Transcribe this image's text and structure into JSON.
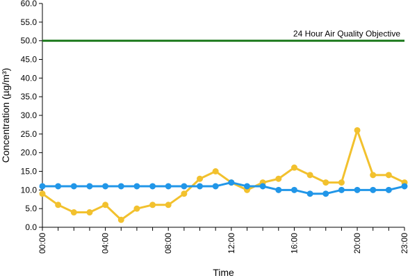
{
  "chart_data": {
    "type": "line",
    "title": "",
    "xlabel": "Time",
    "ylabel": "Concentration (µg/m³)",
    "ylim": [
      0,
      60
    ],
    "yticks": [
      "0.0",
      "5.0",
      "10.0",
      "15.0",
      "20.0",
      "25.0",
      "30.0",
      "35.0",
      "40.0",
      "45.0",
      "50.0",
      "55.0",
      "60.0"
    ],
    "x": [
      "00:00",
      "01:00",
      "02:00",
      "03:00",
      "04:00",
      "05:00",
      "06:00",
      "07:00",
      "08:00",
      "09:00",
      "10:00",
      "11:00",
      "12:00",
      "13:00",
      "14:00",
      "15:00",
      "16:00",
      "17:00",
      "18:00",
      "19:00",
      "20:00",
      "21:00",
      "22:00",
      "23:00"
    ],
    "xtick_labels": [
      "00:00",
      "04:00",
      "08:00",
      "12:00",
      "16:00",
      "20:00",
      "23:00"
    ],
    "grid": false,
    "legend": "none",
    "series": [
      {
        "color": "#f2c12e",
        "values": [
          9,
          6,
          4,
          4,
          6,
          2,
          5,
          6,
          6,
          9,
          13,
          15,
          12,
          10,
          12,
          13,
          16,
          14,
          12,
          12,
          26,
          14,
          14,
          12
        ]
      },
      {
        "color": "#2196e8",
        "values": [
          11,
          11,
          11,
          11,
          11,
          11,
          11,
          11,
          11,
          11,
          11,
          11,
          12,
          11,
          11,
          10,
          10,
          9,
          9,
          10,
          10,
          10,
          10,
          11
        ]
      }
    ],
    "reference_line": {
      "value": 50,
      "label": "24 Hour Air Quality Objective",
      "color": "#1e7a1e"
    }
  }
}
